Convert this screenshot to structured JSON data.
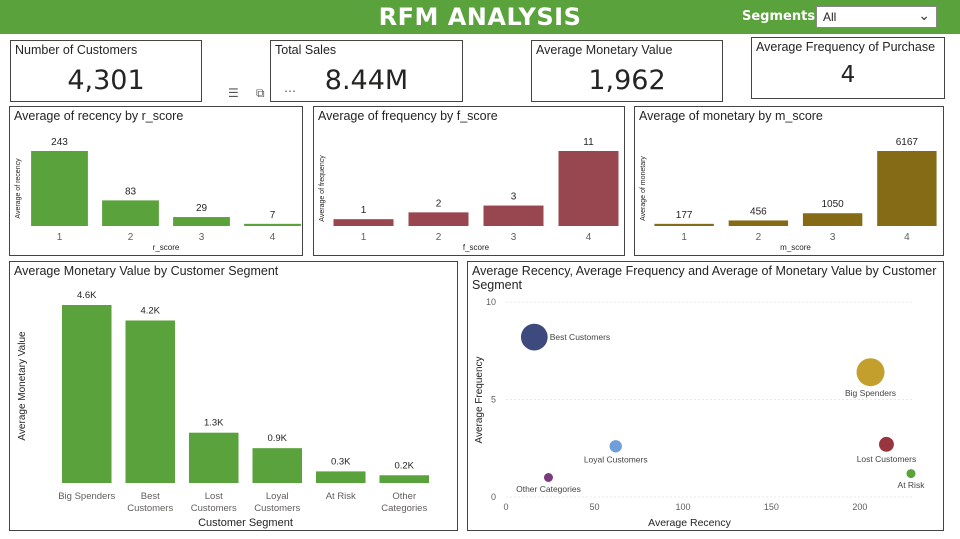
{
  "header": {
    "title": "RFM ANALYSIS",
    "segments_label": "Segments:",
    "segments_value": "All",
    "bg_color": "#5aa23c"
  },
  "cards": {
    "customers": {
      "label": "Number of Customers",
      "value": "4,301"
    },
    "sales": {
      "label": "Total Sales",
      "value": "8.44M"
    },
    "monetary": {
      "label": "Average Monetary Value",
      "value": "1,962"
    },
    "frequency": {
      "label": "Average Frequency of Purchase",
      "value": "4"
    }
  },
  "toolbar": {
    "icons": [
      "filter-icon",
      "focus-mode-icon",
      "more-options-icon"
    ]
  },
  "chart_data": [
    {
      "id": "recency",
      "type": "bar",
      "title": "Average of recency by r_score",
      "xlabel": "r_score",
      "ylabel": "Average of recency",
      "categories": [
        "1",
        "2",
        "3",
        "4"
      ],
      "values": [
        243,
        83,
        29,
        7
      ],
      "labels": [
        "243",
        "83",
        "29",
        "7"
      ],
      "color": "#5aa23c",
      "ylim": [
        0,
        243
      ]
    },
    {
      "id": "frequency",
      "type": "bar",
      "title": "Average of frequency by f_score",
      "xlabel": "f_score",
      "ylabel": "Average of frequency",
      "categories": [
        "1",
        "2",
        "3",
        "4"
      ],
      "values": [
        1,
        2,
        3,
        11
      ],
      "labels": [
        "1",
        "2",
        "3",
        "11"
      ],
      "color": "#98464f",
      "ylim": [
        0,
        11
      ]
    },
    {
      "id": "monetary",
      "type": "bar",
      "title": "Average of monetary by m_score",
      "xlabel": "m_score",
      "ylabel": "Average of monetary",
      "categories": [
        "1",
        "2",
        "3",
        "4"
      ],
      "values": [
        177,
        456,
        1050,
        6167
      ],
      "labels": [
        "177",
        "456",
        "1050",
        "6167"
      ],
      "color": "#866b17",
      "ylim": [
        0,
        6167
      ]
    },
    {
      "id": "segment",
      "type": "bar",
      "title": "Average Monetary Value by Customer Segment",
      "xlabel": "Customer Segment",
      "ylabel": "Average Monetary Value",
      "categories": [
        "Big Spenders",
        "Best Customers",
        "Lost Customers",
        "Loyal Customers",
        "At Risk",
        "Other Categories"
      ],
      "category_lines": [
        [
          "Big Spenders"
        ],
        [
          "Best",
          "Customers"
        ],
        [
          "Lost",
          "Customers"
        ],
        [
          "Loyal",
          "Customers"
        ],
        [
          "At Risk"
        ],
        [
          "Other",
          "Categories"
        ]
      ],
      "values": [
        4600,
        4200,
        1300,
        900,
        300,
        200
      ],
      "labels": [
        "4.6K",
        "4.2K",
        "1.3K",
        "0.9K",
        "0.3K",
        "0.2K"
      ],
      "color": "#5aa23c",
      "ylim": [
        0,
        4600
      ]
    },
    {
      "id": "scatter",
      "type": "scatter",
      "title": "Average Recency, Average Frequency and Average of Monetary Value by Customer Segment",
      "xlabel": "Average Recency",
      "ylabel": "Average Frequency",
      "xlim": [
        0,
        230
      ],
      "ylim": [
        0,
        10
      ],
      "xticks": [
        0,
        50,
        100,
        150,
        200
      ],
      "yticks": [
        0,
        5,
        10
      ],
      "points": [
        {
          "label": "Best Customers",
          "x": 16,
          "y": 8.2,
          "size": 4200,
          "color": "#3c4a7d"
        },
        {
          "label": "Big Spenders",
          "x": 206,
          "y": 6.4,
          "size": 4600,
          "color": "#c3a02e"
        },
        {
          "label": "Loyal Customers",
          "x": 62,
          "y": 2.6,
          "size": 900,
          "color": "#6f9ed9"
        },
        {
          "label": "Lost Customers",
          "x": 215,
          "y": 2.7,
          "size": 1300,
          "color": "#98363f"
        },
        {
          "label": "Other Categories",
          "x": 24,
          "y": 1.0,
          "size": 200,
          "color": "#7b3a7d"
        },
        {
          "label": "At Risk",
          "x": 230,
          "y": 1.2,
          "size": 300,
          "color": "#5aa23c"
        }
      ]
    }
  ]
}
